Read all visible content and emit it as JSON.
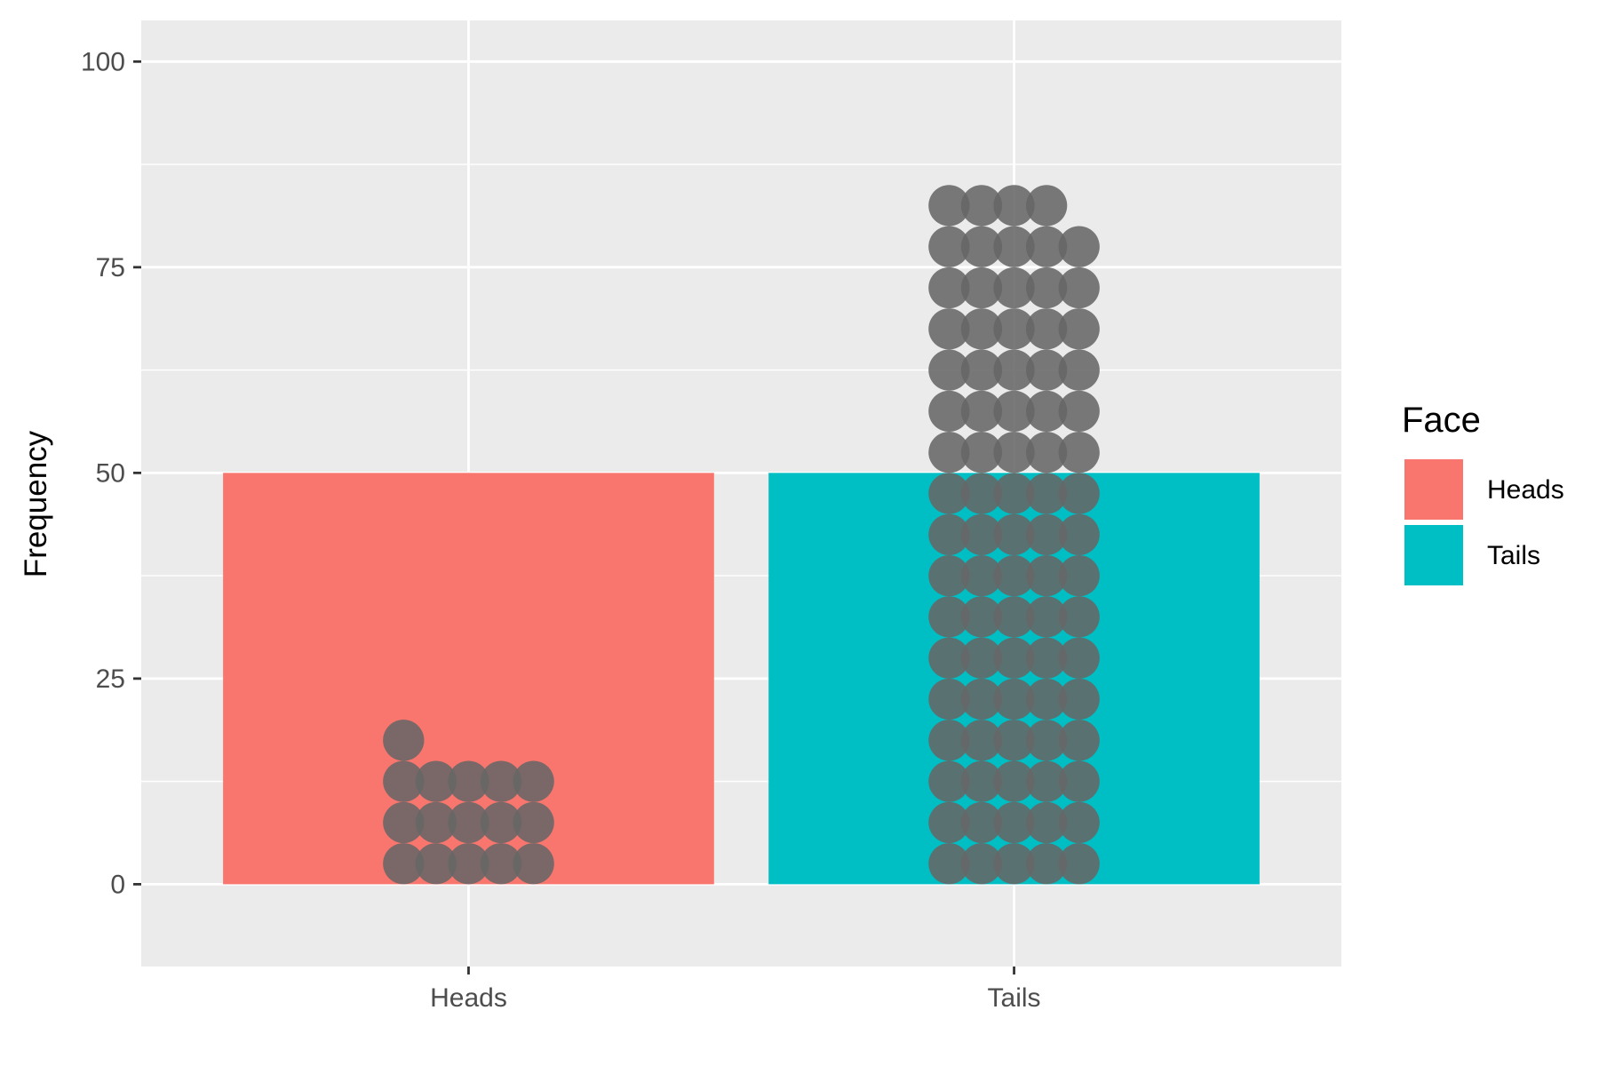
{
  "chart_data": {
    "type": "bar",
    "categories": [
      "Heads",
      "Tails"
    ],
    "values": [
      50,
      50
    ],
    "ylabel": "Frequency",
    "xlabel": "",
    "ylim": [
      -10,
      105
    ],
    "yticks": [
      0,
      25,
      50,
      75,
      100
    ],
    "grid": true,
    "bar_colors": [
      "#F8766D",
      "#00BFC4"
    ],
    "legend": {
      "title": "Face",
      "position": "right",
      "entries": [
        {
          "label": "Heads",
          "color": "#F8766D"
        },
        {
          "label": "Tails",
          "color": "#00BFC4"
        }
      ]
    },
    "dots": {
      "color": "#666666",
      "opacity": 0.88,
      "bin_width": 5,
      "column_offsets": [
        -2,
        -1,
        0,
        1,
        2
      ],
      "column_counts": {
        "Heads": [
          4,
          3,
          3,
          3,
          3
        ],
        "Tails": [
          17,
          17,
          17,
          17,
          16
        ]
      }
    }
  }
}
